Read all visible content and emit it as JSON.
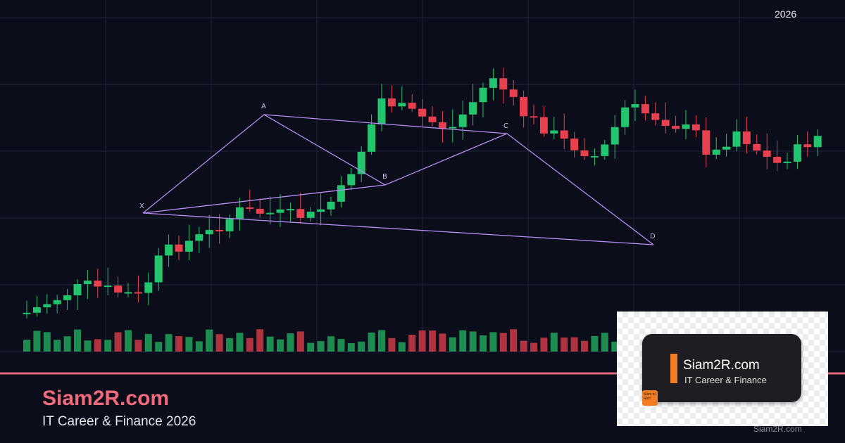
{
  "header": {
    "year": "2026"
  },
  "pattern": {
    "x": "X",
    "a": "A",
    "b": "B",
    "c": "C",
    "d": "D"
  },
  "footer": {
    "title": "Siam2R.com",
    "tagline": "IT Career & Finance 2026"
  },
  "logo": {
    "name": "Siam2R.com",
    "subtitle": "IT Career & Finance",
    "badge": "Siam to Rich"
  },
  "watermark": "Siam2R.com"
}
